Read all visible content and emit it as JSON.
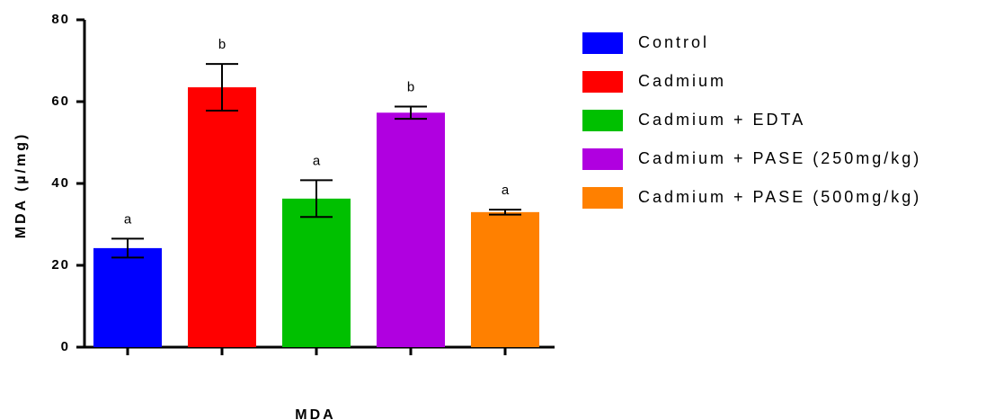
{
  "chart_data": {
    "type": "bar",
    "xlabel": "MDA",
    "ylabel": "MDA (µ/mg)",
    "ylim": [
      0,
      80
    ],
    "yticks": [
      0,
      20,
      40,
      60,
      80
    ],
    "grid": false,
    "legend_position": "right",
    "series": [
      {
        "name": "Control",
        "value": 24.2,
        "error": 2.3,
        "color": "#0000ff",
        "significance": "a"
      },
      {
        "name": "Cadmium",
        "value": 63.5,
        "error": 5.7,
        "color": "#ff0000",
        "significance": "b"
      },
      {
        "name": "Cadmium + EDTA",
        "value": 36.3,
        "error": 4.5,
        "color": "#00c000",
        "significance": "a"
      },
      {
        "name": "Cadmium + PASE (250mg/kg)",
        "value": 57.3,
        "error": 1.5,
        "color": "#b000e0",
        "significance": "b"
      },
      {
        "name": "Cadmium + PASE (500mg/kg)",
        "value": 33.0,
        "error": 0.6,
        "color": "#ff8000",
        "significance": "a"
      }
    ]
  }
}
